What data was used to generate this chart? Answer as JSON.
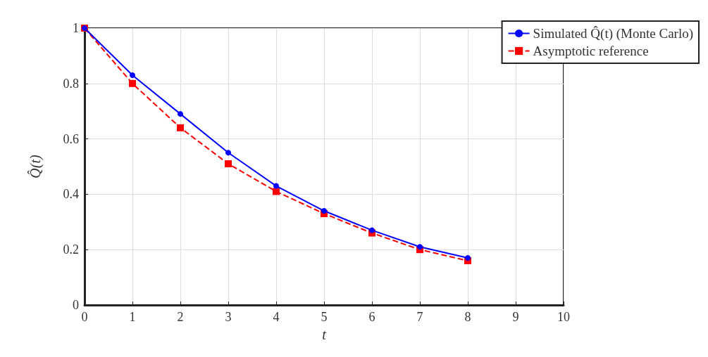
{
  "chart_data": {
    "type": "line",
    "xlabel": "t",
    "ylabel": "Q̂(t)",
    "x": [
      0,
      1,
      2,
      3,
      4,
      5,
      6,
      7,
      8
    ],
    "series": [
      {
        "name": "Simulated Q̂(t) (Monte Carlo)",
        "color": "#0000ff",
        "marker": "circle",
        "line_style": "solid",
        "values": [
          1,
          0.83,
          0.69,
          0.55,
          0.43,
          0.34,
          0.27,
          0.21,
          0.17
        ]
      },
      {
        "name": "Asymptotic reference",
        "color": "#ff0000",
        "marker": "square",
        "line_style": "dashed",
        "values": [
          1,
          0.8,
          0.64,
          0.51,
          0.41,
          0.33,
          0.26,
          0.2,
          0.16
        ]
      }
    ],
    "xlim": [
      0,
      10
    ],
    "xticks": [
      0,
      1,
      2,
      3,
      4,
      5,
      6,
      7,
      8,
      9,
      10
    ],
    "ylim": [
      0,
      1
    ],
    "yticks": [
      0,
      0.2,
      0.4,
      0.6,
      0.8,
      1
    ],
    "grid": true,
    "legend": "top right"
  }
}
